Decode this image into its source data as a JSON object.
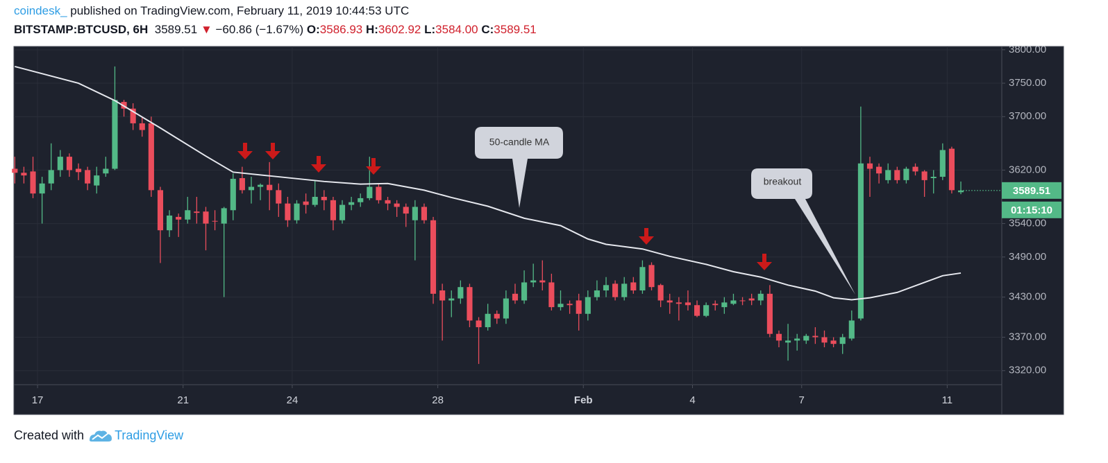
{
  "header": {
    "author": "coindesk_",
    "published": "published on TradingView.com, February 11, 2019 10:44:53 UTC",
    "symbol": "BITSTAMP:BTCUSD, 6H",
    "price": "3589.51",
    "direction": "▼",
    "change": "−60.86 (−1.67%)",
    "ohlc": [
      {
        "label": "O:",
        "value": "3586.93"
      },
      {
        "label": "H:",
        "value": "3602.92"
      },
      {
        "label": "L:",
        "value": "3584.00"
      },
      {
        "label": "C:",
        "value": "3589.51"
      }
    ]
  },
  "chart_data": {
    "type": "candlestick",
    "up_color": "#53b987",
    "down_color": "#eb4d5c",
    "grid": true,
    "xlim": [
      -0.1,
      108.5
    ],
    "ylim": [
      3299,
      3805
    ],
    "xticks": [
      {
        "value": 2.5,
        "label": "17"
      },
      {
        "value": 18.5,
        "label": "21"
      },
      {
        "value": 30.5,
        "label": "24"
      },
      {
        "value": 46.5,
        "label": "28"
      },
      {
        "value": 62.5,
        "label": "Feb"
      },
      {
        "value": 74.5,
        "label": "4"
      },
      {
        "value": 86.5,
        "label": "7"
      },
      {
        "value": 102.5,
        "label": "11"
      }
    ],
    "yticks": [
      {
        "value": 3320,
        "label": "3320.00"
      },
      {
        "value": 3370,
        "label": "3370.00"
      },
      {
        "value": 3430,
        "label": "3430.00"
      },
      {
        "value": 3490,
        "label": "3490.00"
      },
      {
        "value": 3540,
        "label": "3540.00"
      },
      {
        "value": 3620,
        "label": "3620.00"
      },
      {
        "value": 3700,
        "label": "3700.00"
      },
      {
        "value": 3750,
        "label": "3750.00"
      },
      {
        "value": 3800,
        "label": "3800.00"
      }
    ],
    "candles": {
      "open": [
        3622,
        3616,
        3618,
        3585,
        3600,
        3620,
        3640,
        3622,
        3620,
        3597,
        3615,
        3622,
        3722,
        3712,
        3690,
        3690,
        3590,
        3530,
        3550,
        3546,
        3558,
        3558,
        3544,
        3540,
        3560,
        3608,
        3590,
        3595,
        3598,
        3590,
        3570,
        3545,
        3573,
        3568,
        3580,
        3575,
        3545,
        3568,
        3572,
        3578,
        3595,
        3575,
        3570,
        3565,
        3545,
        3565,
        3545,
        3440,
        3425,
        3428,
        3445,
        3395,
        3385,
        3405,
        3398,
        3435,
        3425,
        3452,
        3455,
        3452,
        3415,
        3420,
        3425,
        3405,
        3430,
        3440,
        3450,
        3430,
        3452,
        3440,
        3478,
        3448,
        3425,
        3422,
        3422,
        3418,
        3402,
        3420,
        3415,
        3420,
        3425,
        3428,
        3425,
        3435,
        3375,
        3362,
        3365,
        3365,
        3372,
        3370,
        3365,
        3360,
        3368,
        3398,
        3630,
        3625,
        3605,
        3620,
        3605,
        3625,
        3618,
        3608,
        3610,
        3652,
        3586.93
      ],
      "high": [
        3640,
        3625,
        3640,
        3610,
        3660,
        3650,
        3645,
        3630,
        3625,
        3625,
        3640,
        3775,
        3725,
        3720,
        3700,
        3700,
        3595,
        3560,
        3555,
        3580,
        3580,
        3565,
        3560,
        3565,
        3615,
        3625,
        3610,
        3600,
        3632,
        3600,
        3580,
        3575,
        3585,
        3605,
        3590,
        3580,
        3575,
        3580,
        3585,
        3640,
        3600,
        3580,
        3575,
        3570,
        3575,
        3570,
        3550,
        3450,
        3440,
        3455,
        3450,
        3400,
        3420,
        3410,
        3440,
        3450,
        3470,
        3480,
        3485,
        3465,
        3440,
        3425,
        3435,
        3440,
        3455,
        3460,
        3455,
        3460,
        3460,
        3485,
        3482,
        3450,
        3435,
        3430,
        3440,
        3425,
        3422,
        3425,
        3430,
        3435,
        3430,
        3435,
        3440,
        3448,
        3380,
        3390,
        3375,
        3375,
        3385,
        3380,
        3370,
        3375,
        3410,
        3715,
        3640,
        3630,
        3630,
        3625,
        3625,
        3630,
        3620,
        3620,
        3660,
        3655,
        3602.92
      ],
      "low": [
        3600,
        3600,
        3578,
        3540,
        3590,
        3610,
        3610,
        3605,
        3590,
        3585,
        3610,
        3620,
        3700,
        3680,
        3670,
        3580,
        3481,
        3520,
        3520,
        3540,
        3540,
        3500,
        3530,
        3430,
        3545,
        3585,
        3570,
        3575,
        3560,
        3550,
        3535,
        3540,
        3555,
        3565,
        3560,
        3530,
        3540,
        3560,
        3565,
        3575,
        3570,
        3560,
        3550,
        3535,
        3485,
        3540,
        3420,
        3365,
        3400,
        3420,
        3385,
        3330,
        3380,
        3390,
        3390,
        3420,
        3420,
        3445,
        3440,
        3410,
        3410,
        3405,
        3380,
        3395,
        3425,
        3430,
        3425,
        3425,
        3435,
        3435,
        3440,
        3415,
        3405,
        3395,
        3410,
        3400,
        3400,
        3410,
        3405,
        3418,
        3418,
        3418,
        3418,
        3370,
        3355,
        3335,
        3350,
        3360,
        3360,
        3355,
        3355,
        3345,
        3365,
        3395,
        3580,
        3600,
        3600,
        3600,
        3600,
        3612,
        3580,
        3585,
        3605,
        3585,
        3584
      ],
      "close": [
        3616,
        3612,
        3585,
        3600,
        3620,
        3640,
        3620,
        3617,
        3600,
        3612,
        3622,
        3725,
        3712,
        3690,
        3680,
        3590,
        3530,
        3552,
        3546,
        3560,
        3556,
        3540,
        3543,
        3563,
        3607,
        3590,
        3595,
        3598,
        3590,
        3570,
        3545,
        3570,
        3568,
        3580,
        3575,
        3545,
        3568,
        3572,
        3578,
        3595,
        3575,
        3570,
        3565,
        3555,
        3565,
        3545,
        3435,
        3425,
        3428,
        3445,
        3395,
        3385,
        3405,
        3398,
        3428,
        3425,
        3452,
        3455,
        3452,
        3415,
        3420,
        3418,
        3405,
        3430,
        3440,
        3448,
        3430,
        3450,
        3440,
        3475,
        3445,
        3425,
        3422,
        3420,
        3418,
        3402,
        3418,
        3418,
        3422,
        3425,
        3424,
        3425,
        3435,
        3375,
        3365,
        3365,
        3368,
        3372,
        3370,
        3362,
        3360,
        3370,
        3395,
        3630,
        3622,
        3615,
        3620,
        3605,
        3622,
        3618,
        3605,
        3610,
        3650,
        3590,
        3589.51
      ]
    },
    "ma": {
      "color": "#e6e8ee",
      "x": [
        0,
        7,
        11,
        16,
        21,
        24,
        29,
        34,
        38,
        41,
        45,
        48,
        52,
        56,
        60,
        63,
        65,
        69,
        72,
        76,
        79,
        82,
        85,
        88,
        90,
        92,
        94,
        97,
        100,
        102,
        104
      ],
      "values": [
        3775,
        3750,
        3724,
        3683,
        3641,
        3617,
        3610,
        3603,
        3599,
        3600,
        3590,
        3579,
        3566,
        3548,
        3537,
        3517,
        3509,
        3502,
        3491,
        3479,
        3468,
        3460,
        3448,
        3439,
        3429,
        3426,
        3429,
        3437,
        3452,
        3462,
        3466
      ]
    },
    "last_price": {
      "value": 3589.51,
      "label": "3589.51"
    },
    "countdown": "01:15:10",
    "annotations": [
      "50-candle MA",
      "breakout"
    ]
  },
  "footer": {
    "prefix": "Created with",
    "brand": "TradingView"
  }
}
